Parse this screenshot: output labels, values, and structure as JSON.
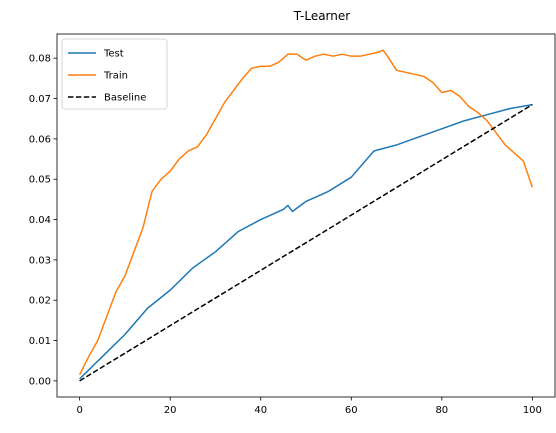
{
  "chart_data": {
    "type": "line",
    "title": "T-Learner",
    "xlabel": "",
    "ylabel": "",
    "xlim": [
      -5,
      105
    ],
    "ylim": [
      -0.004,
      0.086
    ],
    "xticks": [
      0,
      20,
      40,
      60,
      80,
      100
    ],
    "xtick_labels": [
      "0",
      "20",
      "40",
      "60",
      "80",
      "100"
    ],
    "yticks": [
      0.0,
      0.01,
      0.02,
      0.03,
      0.04,
      0.05,
      0.06,
      0.07,
      0.08
    ],
    "ytick_labels": [
      "0.00",
      "0.01",
      "0.02",
      "0.03",
      "0.04",
      "0.05",
      "0.06",
      "0.07",
      "0.08"
    ],
    "grid": false,
    "legend_position": "top-left",
    "series": [
      {
        "name": "Test",
        "color": "#1f77b4",
        "style": "solid",
        "x": [
          0,
          5,
          10,
          15,
          20,
          25,
          30,
          35,
          40,
          45,
          46,
          47,
          50,
          55,
          60,
          65,
          70,
          75,
          80,
          85,
          90,
          95,
          100
        ],
        "y": [
          0.0005,
          0.006,
          0.0115,
          0.018,
          0.0225,
          0.028,
          0.032,
          0.037,
          0.04,
          0.0425,
          0.0435,
          0.042,
          0.0445,
          0.047,
          0.0505,
          0.057,
          0.0585,
          0.0605,
          0.0625,
          0.0645,
          0.066,
          0.0675,
          0.0685
        ]
      },
      {
        "name": "Train",
        "color": "#ff7f0e",
        "style": "solid",
        "x": [
          0,
          2,
          4,
          6,
          8,
          10,
          12,
          14,
          16,
          18,
          20,
          22,
          24,
          26,
          28,
          30,
          32,
          34,
          36,
          38,
          40,
          42,
          44,
          46,
          48,
          50,
          52,
          54,
          56,
          58,
          60,
          62,
          64,
          66,
          67,
          68,
          70,
          72,
          74,
          76,
          78,
          80,
          82,
          84,
          86,
          88,
          90,
          92,
          94,
          96,
          98,
          100
        ],
        "y": [
          0.0015,
          0.006,
          0.01,
          0.016,
          0.022,
          0.026,
          0.032,
          0.038,
          0.047,
          0.05,
          0.052,
          0.055,
          0.057,
          0.058,
          0.061,
          0.065,
          0.069,
          0.072,
          0.075,
          0.0775,
          0.078,
          0.078,
          0.079,
          0.081,
          0.081,
          0.0795,
          0.0805,
          0.081,
          0.0805,
          0.081,
          0.0805,
          0.0805,
          0.081,
          0.0815,
          0.082,
          0.0805,
          0.077,
          0.0765,
          0.076,
          0.0755,
          0.074,
          0.0715,
          0.072,
          0.0705,
          0.068,
          0.0665,
          0.0645,
          0.0615,
          0.0585,
          0.0565,
          0.0545,
          0.048
        ]
      },
      {
        "name": "Baseline",
        "color": "#000000",
        "style": "dashed",
        "x": [
          0,
          100
        ],
        "y": [
          0.0,
          0.0685
        ]
      }
    ]
  }
}
